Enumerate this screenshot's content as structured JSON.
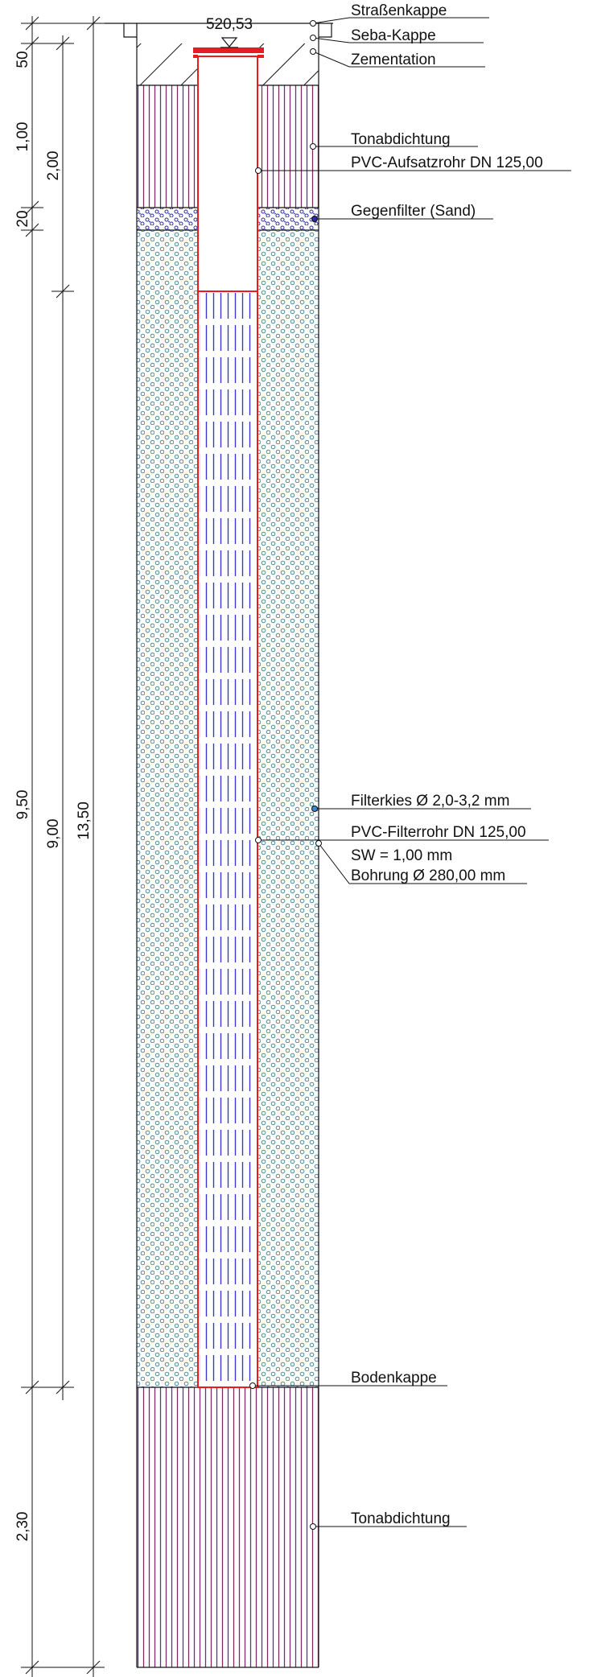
{
  "elevation": {
    "value": "520,53"
  },
  "labels": {
    "strassenkappe": "Straßenkappe",
    "seba_kappe": "Seba-Kappe",
    "zementation": "Zementation",
    "tonabdichtung_top": "Tonabdichtung",
    "aufsatzrohr": "PVC-Aufsatzrohr DN 125,00",
    "gegenfilter": "Gegenfilter (Sand)",
    "filterkies": "Filterkies Ø 2,0-3,2 mm",
    "filterrohr": "PVC-Filterrohr DN 125,00",
    "slot_width": "SW = 1,00 mm",
    "bohrung": "Bohrung Ø 280,00 mm",
    "bodenkappe": "Bodenkappe",
    "tonabdichtung_bottom": "Tonabdichtung"
  },
  "dimensions": {
    "col1": {
      "d50": "50",
      "d100": "1,00",
      "d20": "20",
      "d950": "9,50",
      "d230": "2,30"
    },
    "col2": {
      "d200": "2,00",
      "d900": "9,00"
    },
    "col3": {
      "d1350": "13,50"
    }
  },
  "colors": {
    "line": "#111111",
    "pipe": "#e81c1c",
    "clay": "#7a2a6a",
    "gravel": "#3a88d0",
    "sand": "#2a2a9a",
    "slots": "#3a3ad0"
  }
}
